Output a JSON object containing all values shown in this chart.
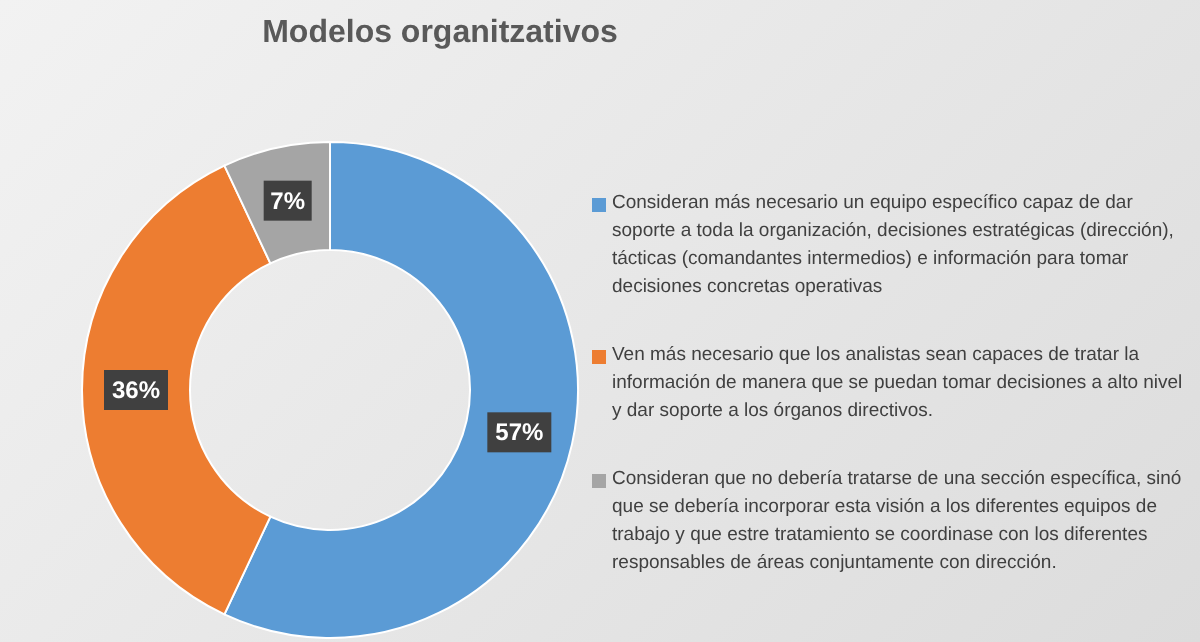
{
  "chart_data": {
    "type": "donut",
    "title": "Modelos organitzativos",
    "categories": [
      "Consideran más necesario un equipo específico capaz de dar soporte a toda la organización, decisiones estratégicas (dirección), tácticas (comandantes intermedios) e información para tomar decisiones concretas operativas",
      "Ven más necesario que los analistas sean capaces de tratar la información de manera que se puedan tomar decisiones a alto nivel y dar soporte a los órganos directivos.",
      "Consideran que no debería tratarse de una sección específica, sinó que se debería incorporar esta visión  a los diferentes equipos de trabajo y que estre tratamiento se coordinase con los diferentes responsables de áreas conjuntamente con dirección."
    ],
    "values": [
      57,
      36,
      7
    ],
    "colors": [
      "#5b9bd5",
      "#ed7d31",
      "#a5a5a5"
    ],
    "value_labels": [
      "57%",
      "36%",
      "7%"
    ],
    "legend": "right"
  }
}
